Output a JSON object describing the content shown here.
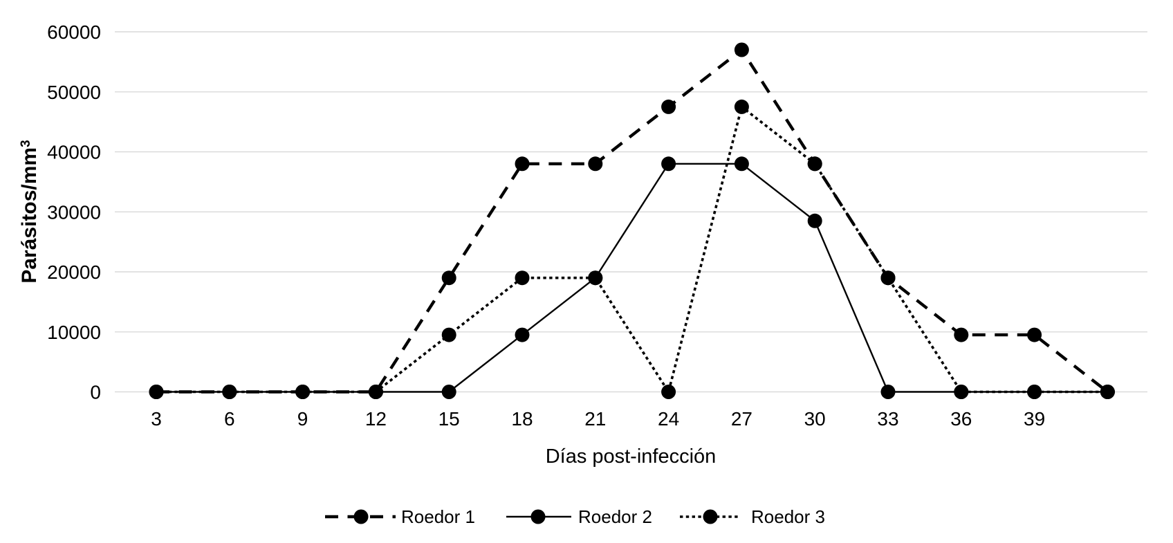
{
  "chart_data": {
    "type": "line",
    "title": "",
    "xlabel": "Días post-infección",
    "ylabel": "Parásitos/mm³",
    "x_days": [
      3,
      6,
      9,
      12,
      15,
      18,
      21,
      24,
      27,
      30,
      33,
      36,
      39,
      42
    ],
    "x_tick_labels": [
      "3",
      "6",
      "9",
      "12",
      "15",
      "18",
      "21",
      "24",
      "27",
      "30",
      "33",
      "36",
      "39"
    ],
    "y_ticks": [
      0,
      10000,
      20000,
      30000,
      40000,
      50000,
      60000
    ],
    "y_tick_labels": [
      "0",
      "10000",
      "20000",
      "30000",
      "40000",
      "50000",
      "60000"
    ],
    "ylim": [
      0,
      60000
    ],
    "grid": "horizontal-only",
    "legend_position": "bottom-center",
    "series": [
      {
        "name": "Roedor 1",
        "line_style": "dashed",
        "marker": "filled-circle",
        "values": [
          0,
          0,
          0,
          0,
          19000,
          38000,
          38000,
          47500,
          57000,
          38000,
          19000,
          9500,
          9500,
          0
        ]
      },
      {
        "name": "Roedor 2",
        "line_style": "solid",
        "marker": "filled-circle",
        "values": [
          0,
          0,
          0,
          0,
          0,
          9500,
          19000,
          38000,
          38000,
          28500,
          0,
          0,
          0,
          0
        ]
      },
      {
        "name": "Roedor 3",
        "line_style": "dotted",
        "marker": "filled-circle",
        "values": [
          0,
          0,
          0,
          0,
          9500,
          19000,
          19000,
          0,
          47500,
          38000,
          19000,
          0,
          0,
          0
        ]
      }
    ],
    "colors": {
      "line": "#000000",
      "marker": "#000000",
      "grid": "#d9d9d9",
      "text": "#000000",
      "background": "#ffffff"
    }
  }
}
